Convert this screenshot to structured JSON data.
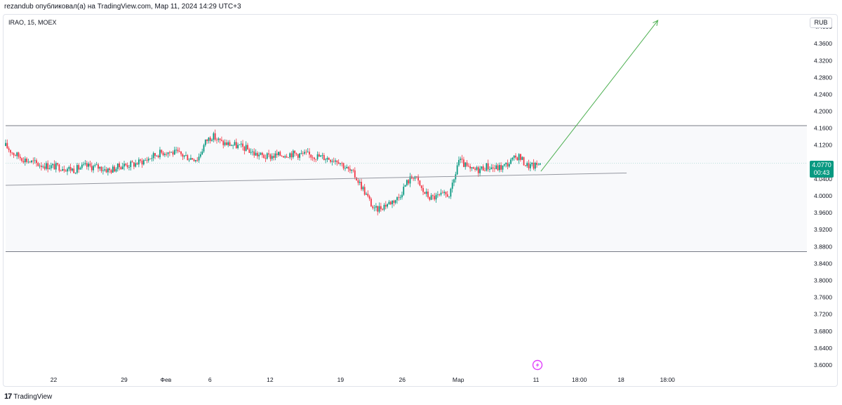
{
  "header": {
    "published": "rezandub опубликовал(а) на TradingView.com, Мар 11, 2024 14:29 UTC+3"
  },
  "symbol_info": "IRAO, 15, MOEX",
  "currency": "RUB",
  "last_price": {
    "value": "4.0770",
    "countdown": "00:43",
    "color": "#089981"
  },
  "footer": {
    "logo_mark": "17",
    "brand": "TradingView"
  },
  "colors": {
    "up": "#089981",
    "down": "#f23645",
    "channel_fill": "#f8f9fb",
    "channel_border": "#787b86",
    "trendline": "#9598a1",
    "arrow": "#4caf50",
    "badge": "#e040fb"
  },
  "icons": {
    "event_badge": "lightning-icon"
  },
  "chart_data": {
    "type": "candlestick",
    "title": "",
    "y_axis": {
      "min": 3.58,
      "max": 4.43,
      "ticks": [
        4.4,
        4.36,
        4.32,
        4.28,
        4.24,
        4.2,
        4.16,
        4.12,
        4.04,
        4.0,
        3.96,
        3.92,
        3.88,
        3.84,
        3.8,
        3.76,
        3.72,
        3.68,
        3.64,
        3.6
      ],
      "tick_labels": [
        "4.4000",
        "4.3600",
        "4.3200",
        "4.2800",
        "4.2400",
        "4.2000",
        "4.1600",
        "4.1200",
        "4.0400",
        "4.0000",
        "3.9600",
        "3.9200",
        "3.8800",
        "3.8400",
        "3.8000",
        "3.7600",
        "3.7200",
        "3.6800",
        "3.6400",
        "3.6000"
      ]
    },
    "x_axis": {
      "tick_labels": [
        "22",
        "29",
        "Фев",
        "6",
        "12",
        "19",
        "26",
        "Мар",
        "11",
        "18:00",
        "18",
        "18:00"
      ],
      "tick_positions": [
        0.06,
        0.148,
        0.2,
        0.255,
        0.33,
        0.418,
        0.495,
        0.565,
        0.662,
        0.716,
        0.768,
        0.826
      ]
    },
    "price_series": [
      [
        0.0,
        4.118
      ],
      [
        0.01,
        4.1
      ],
      [
        0.025,
        4.085
      ],
      [
        0.04,
        4.075
      ],
      [
        0.055,
        4.07
      ],
      [
        0.07,
        4.068
      ],
      [
        0.085,
        4.062
      ],
      [
        0.1,
        4.07
      ],
      [
        0.115,
        4.068
      ],
      [
        0.13,
        4.06
      ],
      [
        0.145,
        4.072
      ],
      [
        0.16,
        4.075
      ],
      [
        0.175,
        4.085
      ],
      [
        0.19,
        4.1
      ],
      [
        0.2,
        4.105
      ],
      [
        0.215,
        4.1
      ],
      [
        0.23,
        4.09
      ],
      [
        0.24,
        4.088
      ],
      [
        0.25,
        4.13
      ],
      [
        0.258,
        4.142
      ],
      [
        0.27,
        4.125
      ],
      [
        0.285,
        4.12
      ],
      [
        0.3,
        4.112
      ],
      [
        0.31,
        4.1
      ],
      [
        0.325,
        4.092
      ],
      [
        0.34,
        4.096
      ],
      [
        0.355,
        4.1
      ],
      [
        0.37,
        4.098
      ],
      [
        0.385,
        4.095
      ],
      [
        0.4,
        4.09
      ],
      [
        0.415,
        4.085
      ],
      [
        0.425,
        4.065
      ],
      [
        0.435,
        4.05
      ],
      [
        0.445,
        4.02
      ],
      [
        0.455,
        3.985
      ],
      [
        0.46,
        3.965
      ],
      [
        0.47,
        3.975
      ],
      [
        0.48,
        3.985
      ],
      [
        0.49,
        3.995
      ],
      [
        0.5,
        4.03
      ],
      [
        0.51,
        4.05
      ],
      [
        0.52,
        4.012
      ],
      [
        0.53,
        3.995
      ],
      [
        0.545,
        4.0
      ],
      [
        0.555,
        4.005
      ],
      [
        0.56,
        4.04
      ],
      [
        0.565,
        4.085
      ],
      [
        0.58,
        4.06
      ],
      [
        0.59,
        4.062
      ],
      [
        0.6,
        4.07
      ],
      [
        0.61,
        4.065
      ],
      [
        0.62,
        4.068
      ],
      [
        0.63,
        4.08
      ],
      [
        0.64,
        4.095
      ],
      [
        0.65,
        4.072
      ],
      [
        0.66,
        4.07
      ],
      [
        0.667,
        4.077
      ]
    ],
    "channel": {
      "upper": 4.166,
      "lower": 3.868
    },
    "trendline": {
      "x": [
        0.0,
        0.775
      ],
      "y": [
        4.025,
        4.054
      ]
    },
    "projection_arrow": {
      "x": [
        0.668,
        0.814
      ],
      "y": [
        4.058,
        4.415
      ]
    },
    "last_value": 4.077
  }
}
